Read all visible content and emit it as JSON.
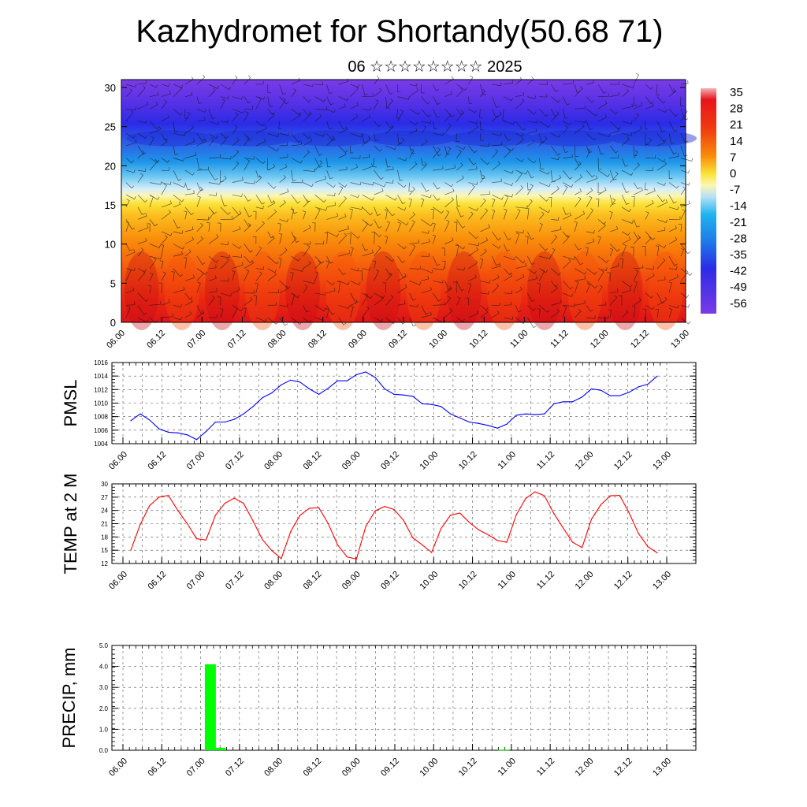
{
  "figure": {
    "title": "Kazhydromet for Shortandy(50.68 71)",
    "subtitle": "06 ☆☆☆☆☆☆☆☆ 2025"
  },
  "chart_data": [
    {
      "type": "heatmap",
      "name": "vertical cross-section",
      "x_tick_labels": [
        "06.00",
        "06.12",
        "07.00",
        "07.12",
        "08.00",
        "08.12",
        "09.00",
        "09.12",
        "10.00",
        "10.12",
        "11.00",
        "11.12",
        "12.00",
        "12.12",
        "13.00"
      ],
      "y_tick_labels": [
        "0",
        "5",
        "10",
        "15",
        "20",
        "25",
        "30"
      ],
      "ylim": [
        0,
        31
      ],
      "colorbar_labels": [
        "35",
        "28",
        "21",
        "14",
        "7",
        "0",
        "-7",
        "-14",
        "-21",
        "-28",
        "-35",
        "-42",
        "-49",
        "-56"
      ],
      "colors": {
        "warm": "#e8141c",
        "orange": "#f98c0a",
        "yellow": "#fbe33a",
        "cold": "#1e96e8",
        "deep": "#2b2be6",
        "violet": "#7a3ce6"
      },
      "overlay": "wind barbs"
    },
    {
      "type": "line",
      "ylabel": "PMSL",
      "ylim": [
        1004,
        1016
      ],
      "y_tick_labels": [
        "1004",
        "1006",
        "1008",
        "1010",
        "1012",
        "1014",
        "1016"
      ],
      "x_tick_labels": [
        "06.00",
        "06.12",
        "07.00",
        "07.12",
        "08.00",
        "08.12",
        "09.00",
        "09.12",
        "10.00",
        "10.12",
        "11.00",
        "11.12",
        "12.00",
        "12.12",
        "13.00"
      ],
      "color": "#0000ff",
      "values": [
        1007.4,
        1008.4,
        1007.5,
        1006.2,
        1005.7,
        1005.6,
        1005.3,
        1004.6,
        1005.8,
        1007.2,
        1007.2,
        1007.6,
        1008.4,
        1009.5,
        1010.8,
        1011.5,
        1012.7,
        1013.4,
        1013.1,
        1012.1,
        1011.3,
        1012.2,
        1013.3,
        1013.3,
        1014.2,
        1014.6,
        1013.8,
        1012.1,
        1011.3,
        1011.2,
        1011.0,
        1009.9,
        1009.8,
        1009.5,
        1008.4,
        1007.8,
        1007.2,
        1007.0,
        1006.7,
        1006.3,
        1006.9,
        1008.2,
        1008.4,
        1008.3,
        1008.4,
        1009.9,
        1010.2,
        1010.2,
        1010.9,
        1012.1,
        1011.9,
        1011.1,
        1011.1,
        1011.6,
        1012.4,
        1012.8,
        1014.0
      ]
    },
    {
      "type": "line",
      "ylabel": "TEMP at 2 M",
      "ylim": [
        12,
        30
      ],
      "y_tick_labels": [
        "12",
        "15",
        "18",
        "21",
        "24",
        "27",
        "30"
      ],
      "x_tick_labels": [
        "06.00",
        "06.12",
        "07.00",
        "07.12",
        "08.00",
        "08.12",
        "09.00",
        "09.12",
        "10.00",
        "10.12",
        "11.00",
        "11.12",
        "12.00",
        "12.12",
        "13.00"
      ],
      "color": "#ff0000",
      "values": [
        15.0,
        20.8,
        25.1,
        27.0,
        27.4,
        24.0,
        21.0,
        17.6,
        17.3,
        22.9,
        25.6,
        26.8,
        25.6,
        21.6,
        17.4,
        14.9,
        13.1,
        19.2,
        22.9,
        24.5,
        24.6,
        21.0,
        16.2,
        13.5,
        13.0,
        20.4,
        23.9,
        24.9,
        24.2,
        21.8,
        17.8,
        16.2,
        14.5,
        19.9,
        22.9,
        23.4,
        21.3,
        19.6,
        18.5,
        17.2,
        16.8,
        23.0,
        26.7,
        28.2,
        27.3,
        23.3,
        20.0,
        16.8,
        15.6,
        22.0,
        25.3,
        27.3,
        27.4,
        23.5,
        18.8,
        15.8,
        14.4
      ]
    },
    {
      "type": "bar",
      "ylabel": "PRECIP, mm",
      "ylim": [
        0,
        5
      ],
      "y_tick_labels": [
        "0.0",
        "1.0",
        "2.0",
        "3.0",
        "4.0",
        "5.0"
      ],
      "x_tick_labels": [
        "06.00",
        "06.12",
        "07.00",
        "07.12",
        "08.00",
        "08.12",
        "09.00",
        "09.12",
        "10.00",
        "10.12",
        "11.00",
        "11.12",
        "12.00",
        "12.12",
        "13.00"
      ],
      "color": "#00ff00",
      "bars": [
        {
          "index": 2.25,
          "value": 4.1
        },
        {
          "index": 2.5,
          "value": 0.12
        },
        {
          "index": 9.8,
          "value": 0.03
        }
      ]
    }
  ]
}
